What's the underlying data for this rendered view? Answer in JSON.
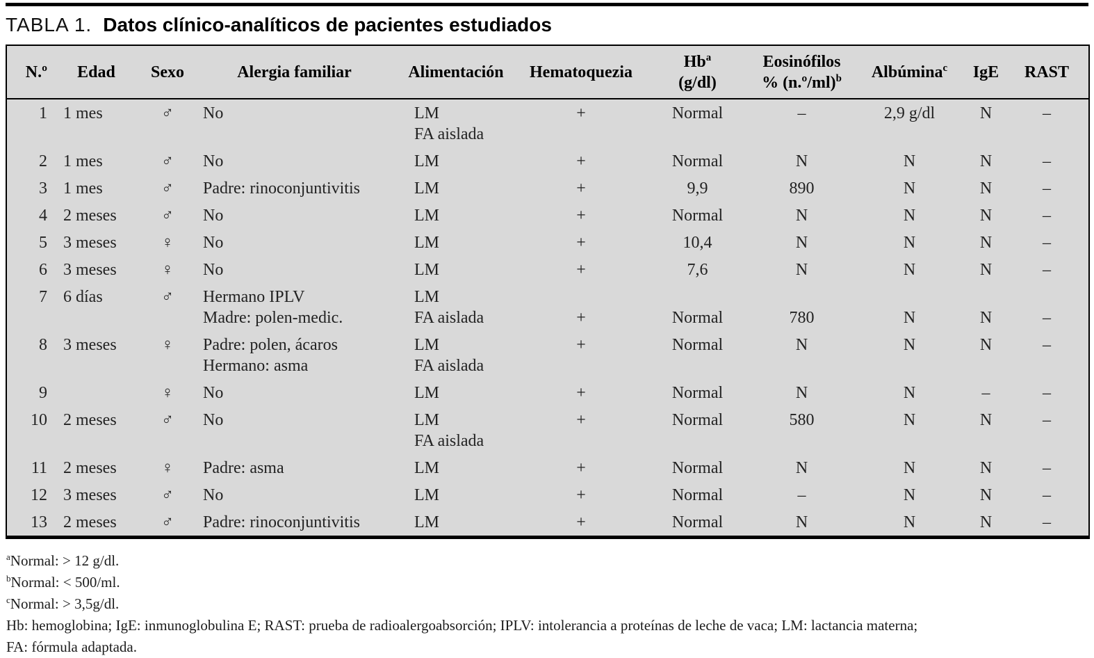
{
  "title": {
    "label": "TABLA 1.",
    "text": "Datos clínico-analíticos de pacientes estudiados"
  },
  "table": {
    "columns": [
      {
        "id": "num",
        "lines": [
          {
            "text": "N.º"
          }
        ]
      },
      {
        "id": "edad",
        "lines": [
          {
            "text": "Edad"
          }
        ]
      },
      {
        "id": "sexo",
        "lines": [
          {
            "text": "Sexo"
          }
        ]
      },
      {
        "id": "alergia",
        "lines": [
          {
            "text": "Alergia familiar"
          }
        ]
      },
      {
        "id": "alimentacion",
        "lines": [
          {
            "text": "Alimentación"
          }
        ]
      },
      {
        "id": "hematoquezia",
        "lines": [
          {
            "text": "Hematoquezia"
          }
        ]
      },
      {
        "id": "hb",
        "lines": [
          {
            "text": "Hb",
            "sup": "a"
          },
          {
            "text": "(g/dl)"
          }
        ]
      },
      {
        "id": "eosinofilos",
        "lines": [
          {
            "text": "Eosinófilos"
          },
          {
            "text": "% (n.º/ml)",
            "sup": "b"
          }
        ]
      },
      {
        "id": "albumina",
        "lines": [
          {
            "text": "Albúmina",
            "sup": "c"
          }
        ]
      },
      {
        "id": "ige",
        "lines": [
          {
            "text": "IgE"
          }
        ]
      },
      {
        "id": "rast",
        "lines": [
          {
            "text": "RAST"
          }
        ]
      }
    ],
    "rows": [
      {
        "cells": [
          [
            "1"
          ],
          [
            "1 mes"
          ],
          [
            "♂"
          ],
          [
            "No"
          ],
          [
            "LM",
            "FA aislada"
          ],
          [
            "+"
          ],
          [
            "Normal"
          ],
          [
            "–"
          ],
          [
            "2,9 g/dl"
          ],
          [
            "N"
          ],
          [
            "–"
          ]
        ]
      },
      {
        "cells": [
          [
            "2"
          ],
          [
            "1 mes"
          ],
          [
            "♂"
          ],
          [
            "No"
          ],
          [
            "LM"
          ],
          [
            "+"
          ],
          [
            "Normal"
          ],
          [
            "N"
          ],
          [
            "N"
          ],
          [
            "N"
          ],
          [
            "–"
          ]
        ]
      },
      {
        "cells": [
          [
            "3"
          ],
          [
            "1 mes"
          ],
          [
            "♂"
          ],
          [
            "Padre: rinoconjuntivitis"
          ],
          [
            "LM"
          ],
          [
            "+"
          ],
          [
            "9,9"
          ],
          [
            "890"
          ],
          [
            "N"
          ],
          [
            "N"
          ],
          [
            "–"
          ]
        ]
      },
      {
        "cells": [
          [
            "4"
          ],
          [
            "2 meses"
          ],
          [
            "♂"
          ],
          [
            "No"
          ],
          [
            "LM"
          ],
          [
            "+"
          ],
          [
            "Normal"
          ],
          [
            "N"
          ],
          [
            "N"
          ],
          [
            "N"
          ],
          [
            "–"
          ]
        ]
      },
      {
        "cells": [
          [
            "5"
          ],
          [
            "3 meses"
          ],
          [
            "♀"
          ],
          [
            "No"
          ],
          [
            "LM"
          ],
          [
            "+"
          ],
          [
            "10,4"
          ],
          [
            "N"
          ],
          [
            "N"
          ],
          [
            "N"
          ],
          [
            "–"
          ]
        ]
      },
      {
        "cells": [
          [
            "6"
          ],
          [
            "3 meses"
          ],
          [
            "♀"
          ],
          [
            "No"
          ],
          [
            "LM"
          ],
          [
            "+"
          ],
          [
            "7,6"
          ],
          [
            "N"
          ],
          [
            "N"
          ],
          [
            "N"
          ],
          [
            "–"
          ]
        ]
      },
      {
        "cells": [
          [
            "7"
          ],
          [
            "6 días"
          ],
          [
            "♂"
          ],
          [
            "Hermano IPLV",
            "Madre: polen-medic."
          ],
          [
            "LM",
            "FA aislada"
          ],
          [
            "",
            "+"
          ],
          [
            "",
            "Normal"
          ],
          [
            "",
            "780"
          ],
          [
            "",
            "N"
          ],
          [
            "",
            "N"
          ],
          [
            "",
            "–"
          ]
        ]
      },
      {
        "cells": [
          [
            "8"
          ],
          [
            "3 meses"
          ],
          [
            "♀"
          ],
          [
            "Padre: polen, ácaros",
            "Hermano: asma"
          ],
          [
            "LM",
            "FA aislada"
          ],
          [
            "+"
          ],
          [
            "Normal"
          ],
          [
            "N"
          ],
          [
            "N"
          ],
          [
            "N"
          ],
          [
            "–"
          ]
        ]
      },
      {
        "cells": [
          [
            "9"
          ],
          [
            ""
          ],
          [
            "♀"
          ],
          [
            "No"
          ],
          [
            "LM"
          ],
          [
            "+"
          ],
          [
            "Normal"
          ],
          [
            "N"
          ],
          [
            "N"
          ],
          [
            "–"
          ],
          [
            "–"
          ]
        ]
      },
      {
        "cells": [
          [
            "10"
          ],
          [
            "2 meses"
          ],
          [
            "♂"
          ],
          [
            "No"
          ],
          [
            "LM",
            "FA aislada"
          ],
          [
            "+"
          ],
          [
            "Normal"
          ],
          [
            "580"
          ],
          [
            "N"
          ],
          [
            "N"
          ],
          [
            "–"
          ]
        ]
      },
      {
        "cells": [
          [
            "11"
          ],
          [
            "2 meses"
          ],
          [
            "♀"
          ],
          [
            "Padre: asma"
          ],
          [
            "LM"
          ],
          [
            "+"
          ],
          [
            "Normal"
          ],
          [
            "N"
          ],
          [
            "N"
          ],
          [
            "N"
          ],
          [
            "–"
          ]
        ]
      },
      {
        "cells": [
          [
            "12"
          ],
          [
            "3 meses"
          ],
          [
            "♂"
          ],
          [
            "No"
          ],
          [
            "LM"
          ],
          [
            "+"
          ],
          [
            "Normal"
          ],
          [
            "–"
          ],
          [
            "N"
          ],
          [
            "N"
          ],
          [
            "–"
          ]
        ]
      },
      {
        "cells": [
          [
            "13"
          ],
          [
            "2 meses"
          ],
          [
            "♂"
          ],
          [
            "Padre: rinoconjuntivitis"
          ],
          [
            "LM"
          ],
          [
            "+"
          ],
          [
            "Normal"
          ],
          [
            "N"
          ],
          [
            "N"
          ],
          [
            "N"
          ],
          [
            "–"
          ]
        ]
      }
    ]
  },
  "footnotes": [
    {
      "sup": "a",
      "text": "Normal: > 12 g/dl."
    },
    {
      "sup": "b",
      "text": "Normal: < 500/ml."
    },
    {
      "sup": "c",
      "text": "Normal: > 3,5g/dl."
    },
    {
      "sup": "",
      "text": "Hb: hemoglobina; IgE: inmunoglobulina E; RAST: prueba de radioalergoabsorción; IPLV: intolerancia a proteínas de leche de vaca; LM: lactancia materna;"
    },
    {
      "sup": "",
      "text": "FA: fórmula adaptada."
    }
  ],
  "colors": {
    "table_background": "#d9d9d9",
    "rule": "#000000",
    "text": "#1c1c1c"
  }
}
